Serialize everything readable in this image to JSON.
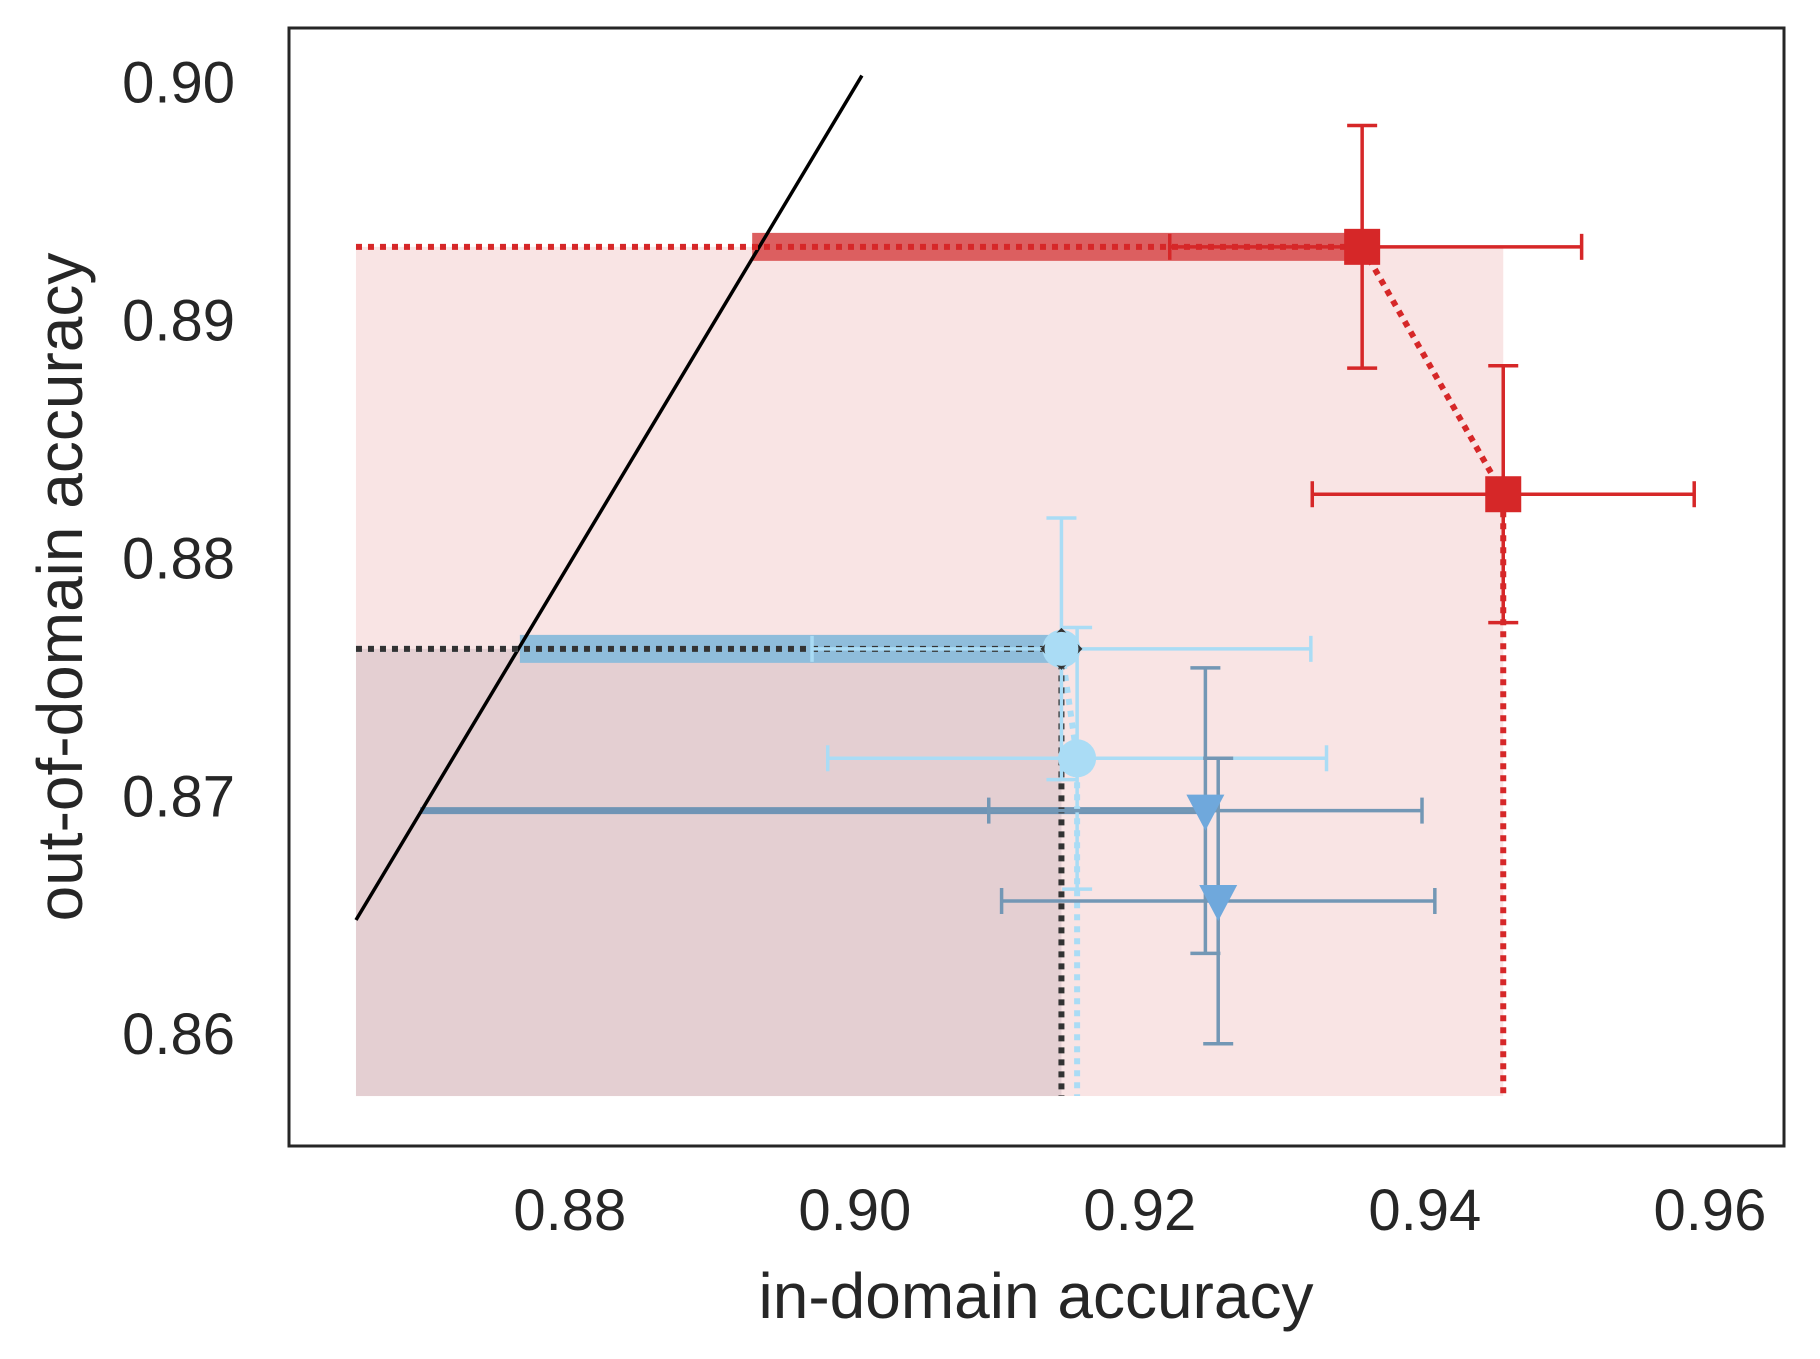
{
  "chart_data": {
    "type": "scatter",
    "title": "",
    "xlabel": "in-domain accuracy",
    "ylabel": "out-of-domain accuracy",
    "xlim": [
      0.8603,
      0.9652
    ],
    "ylim": [
      0.8553,
      0.9023
    ],
    "xticks": [
      "0.88",
      "0.90",
      "0.92",
      "0.94",
      "0.96"
    ],
    "yticks": [
      "0.86",
      "0.87",
      "0.88",
      "0.89",
      "0.90"
    ],
    "grid": false,
    "legend": "none",
    "reference_line": {
      "x": [
        0.865,
        0.9005
      ],
      "y": [
        0.8648,
        0.9003
      ],
      "color": "#000000"
    },
    "series": [
      {
        "color": "#d62728",
        "marker": "square",
        "points": [
          {
            "x": 0.9356,
            "y": 0.8931,
            "xerr": [
              0.0135,
              0.0154
            ],
            "yerr": [
              0.0051,
              0.0051
            ]
          },
          {
            "x": 0.9455,
            "y": 0.8827,
            "xerr": [
              0.0134,
              0.0134
            ],
            "yerr": [
              0.0054,
              0.0054
            ]
          }
        ],
        "frontier": [
          [
            0.865,
            0.8931
          ],
          [
            0.9356,
            0.8931
          ],
          [
            0.9455,
            0.8827
          ],
          [
            0.9455,
            0.8574
          ]
        ],
        "region": {
          "x": [
            0.865,
            0.9455
          ],
          "y": [
            0.8574,
            0.8931
          ]
        },
        "highlight_band": {
          "x": [
            0.8928,
            0.9356
          ],
          "y": 0.8931
        }
      },
      {
        "color": "#aadcf5",
        "marker": "circle",
        "points": [
          {
            "x": 0.9145,
            "y": 0.8762,
            "xerr": [
              0.0175,
              0.0175
            ],
            "yerr": [
              0.0055,
              0.0055
            ]
          },
          {
            "x": 0.9156,
            "y": 0.8716,
            "xerr": [
              0.0175,
              0.0175
            ],
            "yerr": [
              0.0055,
              0.0055
            ]
          }
        ],
        "frontier": [
          [
            0.865,
            0.8762
          ],
          [
            0.9145,
            0.8762
          ],
          [
            0.9156,
            0.8716
          ],
          [
            0.9156,
            0.8574
          ]
        ],
        "highlight_band": {
          "x": [
            0.8765,
            0.9145
          ],
          "y": 0.8762
        }
      },
      {
        "color": "#6fa8dc",
        "marker": "triangle-down",
        "points": [
          {
            "x": 0.9246,
            "y": 0.8694,
            "xerr": [
              0.0152,
              0.0152
            ],
            "yerr": [
              0.006,
              0.006
            ]
          },
          {
            "x": 0.9255,
            "y": 0.8656,
            "xerr": [
              0.0152,
              0.0152
            ],
            "yerr": [
              0.006,
              0.006
            ]
          }
        ],
        "highlight_band": {
          "x": [
            0.8695,
            0.9246
          ],
          "y": 0.8694
        }
      },
      {
        "color": "#333333",
        "marker": "diamond",
        "points": [
          {
            "x": 0.9145,
            "y": 0.8762
          }
        ],
        "frontier": [
          [
            0.865,
            0.8762
          ],
          [
            0.9145,
            0.8762
          ],
          [
            0.9145,
            0.8574
          ]
        ],
        "region": {
          "x": [
            0.865,
            0.9145
          ],
          "y": [
            0.8574,
            0.8762
          ]
        }
      }
    ]
  }
}
